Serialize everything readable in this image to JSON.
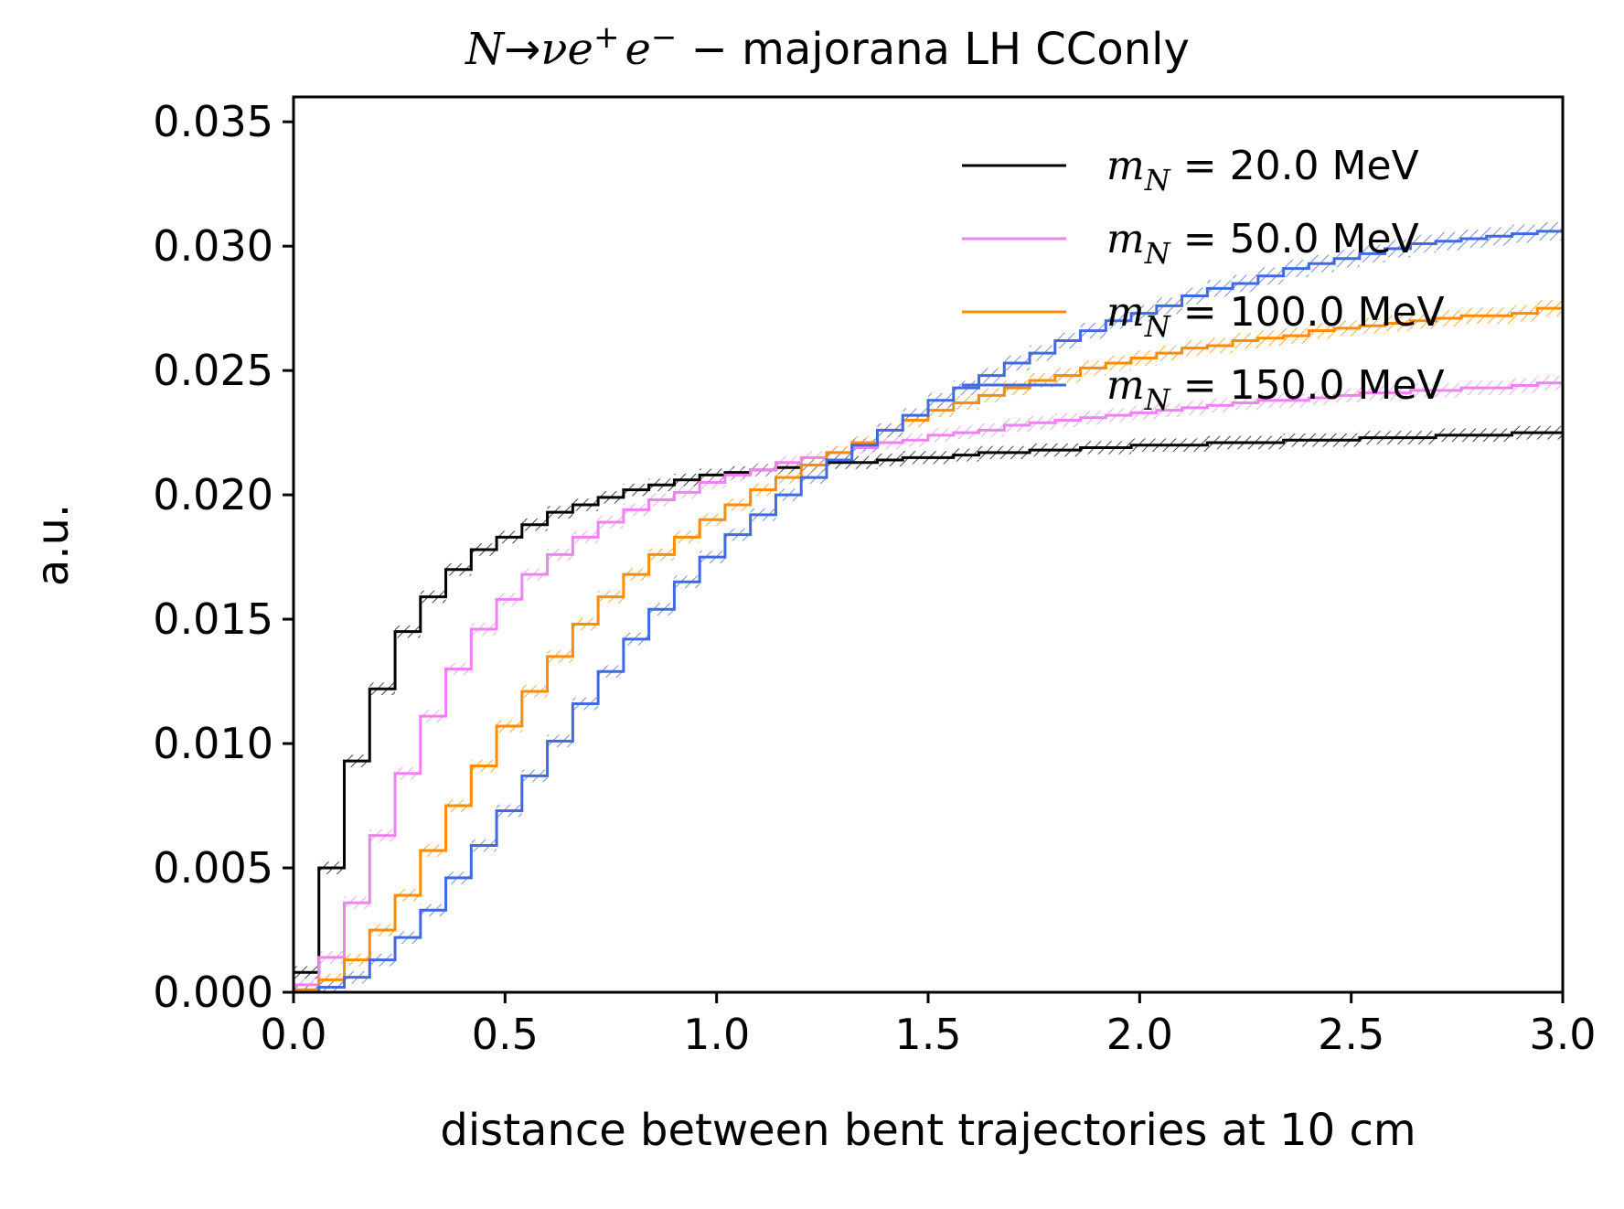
{
  "chart_data": {
    "type": "line",
    "step": true,
    "title": {
      "N": "N",
      "arrow": "→",
      "nu": "ν",
      "ep": "e",
      "ep_sup": "+",
      "em": "e",
      "em_sup": "−",
      "rest": " − majorana LH CConly"
    },
    "xlabel": "distance between bent trajectories at 10 cm",
    "ylabel": "a.u.",
    "xlim": [
      0.0,
      3.0
    ],
    "ylim": [
      0.0,
      0.036
    ],
    "xticks": [
      "0.0",
      "0.5",
      "1.0",
      "1.5",
      "2.0",
      "2.5",
      "3.0"
    ],
    "yticks": [
      "0.000",
      "0.005",
      "0.010",
      "0.015",
      "0.020",
      "0.025",
      "0.030",
      "0.035"
    ],
    "grid": false,
    "legend_position": "top-right",
    "bin_width": 0.06,
    "uncertainty_band": "hatched",
    "series": [
      {
        "name_symbol": "m",
        "name_sub": "N",
        "name_value": " = 20.0 MeV",
        "color": "#000000",
        "values": [
          0.0008,
          0.005,
          0.0093,
          0.0122,
          0.0145,
          0.0159,
          0.017,
          0.0178,
          0.0183,
          0.0188,
          0.0193,
          0.0196,
          0.0199,
          0.0202,
          0.0204,
          0.0206,
          0.0208,
          0.0209,
          0.021,
          0.0211,
          0.0212,
          0.0213,
          0.0213,
          0.0214,
          0.0215,
          0.0215,
          0.0216,
          0.0217,
          0.0217,
          0.0218,
          0.0218,
          0.0219,
          0.0219,
          0.022,
          0.022,
          0.022,
          0.0221,
          0.0221,
          0.0221,
          0.0222,
          0.0222,
          0.0222,
          0.0223,
          0.0223,
          0.0223,
          0.0224,
          0.0224,
          0.0224,
          0.0225,
          0.0225
        ]
      },
      {
        "name_symbol": "m",
        "name_sub": "N",
        "name_value": " = 50.0 MeV",
        "color": "#ee82ee",
        "values": [
          0.0003,
          0.0014,
          0.0036,
          0.0063,
          0.0088,
          0.0111,
          0.013,
          0.0146,
          0.0158,
          0.0168,
          0.0176,
          0.0183,
          0.0189,
          0.0194,
          0.0198,
          0.0201,
          0.0205,
          0.0208,
          0.021,
          0.0213,
          0.0215,
          0.0217,
          0.0219,
          0.0221,
          0.0222,
          0.0224,
          0.0225,
          0.0226,
          0.0228,
          0.0229,
          0.023,
          0.0231,
          0.0232,
          0.0233,
          0.0234,
          0.0235,
          0.0236,
          0.0237,
          0.0238,
          0.0238,
          0.0239,
          0.024,
          0.0241,
          0.0241,
          0.0242,
          0.0242,
          0.0243,
          0.0243,
          0.0244,
          0.0245
        ]
      },
      {
        "name_symbol": "m",
        "name_sub": "N",
        "name_value": " = 100.0 MeV",
        "color": "#ff8c00",
        "values": [
          0.0001,
          0.0005,
          0.0013,
          0.0025,
          0.0039,
          0.0057,
          0.0075,
          0.0091,
          0.0107,
          0.0121,
          0.0135,
          0.0148,
          0.0159,
          0.0168,
          0.0176,
          0.0183,
          0.019,
          0.0196,
          0.0202,
          0.0207,
          0.0212,
          0.0217,
          0.0221,
          0.0226,
          0.023,
          0.0234,
          0.0237,
          0.024,
          0.0243,
          0.0246,
          0.0248,
          0.0251,
          0.0253,
          0.0255,
          0.0257,
          0.0259,
          0.026,
          0.0262,
          0.0263,
          0.0264,
          0.0266,
          0.0267,
          0.0268,
          0.0269,
          0.027,
          0.0271,
          0.0272,
          0.0272,
          0.0273,
          0.0275
        ]
      },
      {
        "name_symbol": "m",
        "name_sub": "N",
        "name_value": " = 150.0 MeV",
        "color": "#4169e1",
        "values": [
          0.0,
          0.0002,
          0.0006,
          0.0013,
          0.0022,
          0.0033,
          0.0046,
          0.0059,
          0.0073,
          0.0087,
          0.0101,
          0.0116,
          0.0129,
          0.0142,
          0.0154,
          0.0165,
          0.0175,
          0.0184,
          0.0192,
          0.02,
          0.0207,
          0.0214,
          0.022,
          0.0226,
          0.0232,
          0.0238,
          0.0243,
          0.0248,
          0.0253,
          0.0257,
          0.0262,
          0.0266,
          0.027,
          0.0273,
          0.0276,
          0.028,
          0.0283,
          0.0285,
          0.0288,
          0.0291,
          0.0293,
          0.0295,
          0.0297,
          0.0299,
          0.0301,
          0.0302,
          0.0303,
          0.0304,
          0.0305,
          0.0306
        ]
      }
    ]
  }
}
